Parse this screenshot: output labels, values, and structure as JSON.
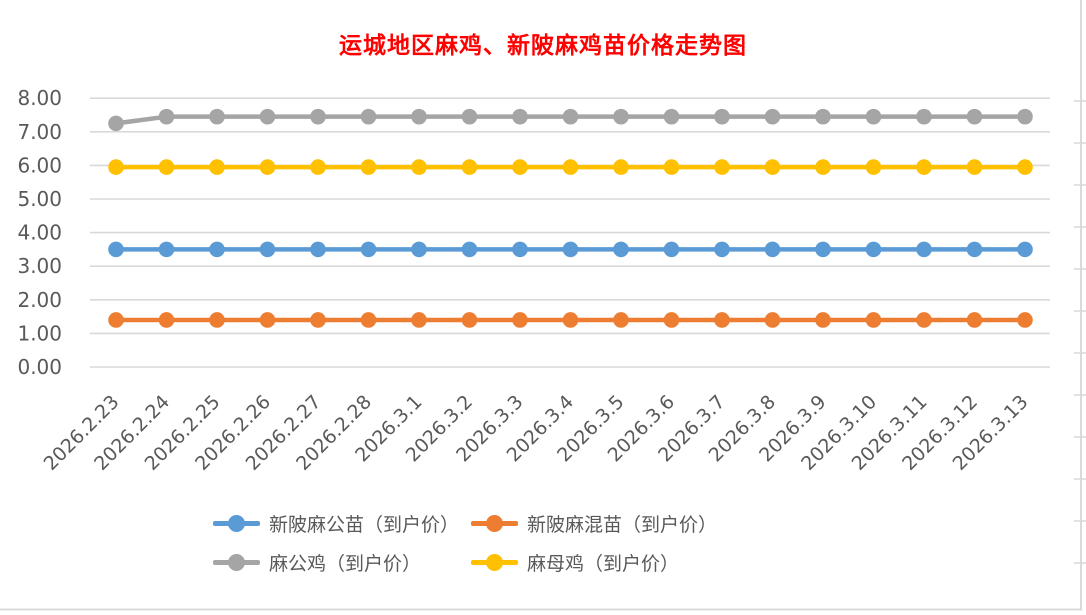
{
  "title": "运城地区麻鸡、新陂麻鸡苗价格走势图",
  "colors": {
    "title": "#ff0000",
    "axis_text": "#595959",
    "gridline": "#d9d9d9",
    "frame": "#d9d9d9",
    "background": "#ffffff"
  },
  "chart_data": {
    "type": "line",
    "title": "运城地区麻鸡、新陂麻鸡苗价格走势图",
    "xlabel": "",
    "ylabel": "",
    "ylim": [
      0,
      8
    ],
    "ytick_step": 1,
    "ytick_labels": [
      "0.00",
      "1.00",
      "2.00",
      "3.00",
      "4.00",
      "5.00",
      "6.00",
      "7.00",
      "8.00"
    ],
    "grid": true,
    "legend_position": "bottom",
    "x": [
      "2026.2.23",
      "2026.2.24",
      "2026.2.25",
      "2026.2.26",
      "2026.2.27",
      "2026.2.28",
      "2026.3.1",
      "2026.3.2",
      "2026.3.3",
      "2026.3.4",
      "2026.3.5",
      "2026.3.6",
      "2026.3.7",
      "2026.3.8",
      "2026.3.9",
      "2026.3.10",
      "2026.3.11",
      "2026.3.12",
      "2026.3.13"
    ],
    "series": [
      {
        "name": "新陂麻公苗（到户价）",
        "color": "#5B9BD5",
        "values": [
          3.5,
          3.5,
          3.5,
          3.5,
          3.5,
          3.5,
          3.5,
          3.5,
          3.5,
          3.5,
          3.5,
          3.5,
          3.5,
          3.5,
          3.5,
          3.5,
          3.5,
          3.5,
          3.5
        ]
      },
      {
        "name": "新陂麻混苗（到户价）",
        "color": "#ED7D31",
        "values": [
          1.4,
          1.4,
          1.4,
          1.4,
          1.4,
          1.4,
          1.4,
          1.4,
          1.4,
          1.4,
          1.4,
          1.4,
          1.4,
          1.4,
          1.4,
          1.4,
          1.4,
          1.4,
          1.4
        ]
      },
      {
        "name": "麻公鸡（到户价）",
        "color": "#A5A5A5",
        "values": [
          7.25,
          7.45,
          7.45,
          7.45,
          7.45,
          7.45,
          7.45,
          7.45,
          7.45,
          7.45,
          7.45,
          7.45,
          7.45,
          7.45,
          7.45,
          7.45,
          7.45,
          7.45,
          7.45
        ]
      },
      {
        "name": "麻母鸡（到户价）",
        "color": "#FFC000",
        "values": [
          5.95,
          5.95,
          5.95,
          5.95,
          5.95,
          5.95,
          5.95,
          5.95,
          5.95,
          5.95,
          5.95,
          5.95,
          5.95,
          5.95,
          5.95,
          5.95,
          5.95,
          5.95,
          5.95
        ]
      }
    ]
  }
}
